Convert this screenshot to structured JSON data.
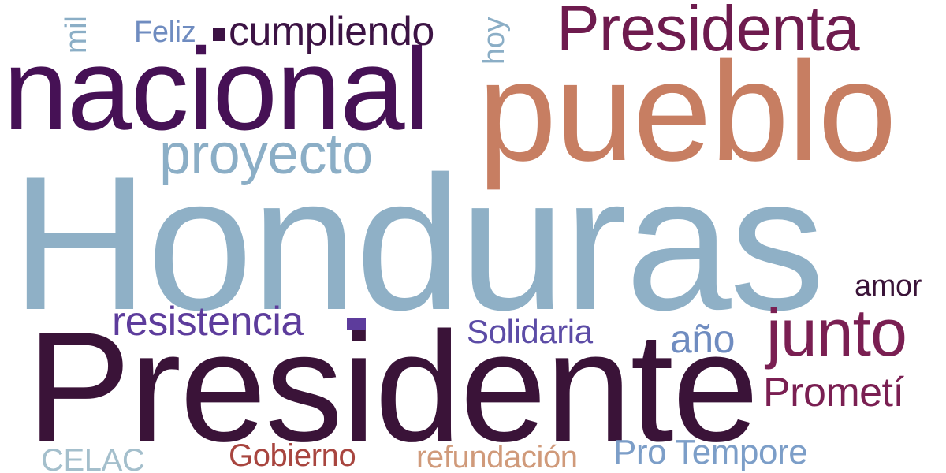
{
  "words": {
    "honduras": {
      "text": "Honduras",
      "color": "#8FB0C6"
    },
    "presidente": {
      "text": "Presidente",
      "color": "#3A1338"
    },
    "pueblo": {
      "text": "pueblo",
      "color": "#C77E62"
    },
    "nacional": {
      "text": "nacional",
      "color": "#461155"
    },
    "presidenta": {
      "text": "Presidenta",
      "color": "#6E1B4E"
    },
    "proyecto": {
      "text": "proyecto",
      "color": "#8BAEC6"
    },
    "junto": {
      "text": "junto",
      "color": "#7A1F52"
    },
    "resistencia": {
      "text": "resistencia",
      "color": "#5D3C9C"
    },
    "cumpliendo": {
      "text": "cumpliendo",
      "color": "#3C1344"
    },
    "prometi": {
      "text": "Prometí",
      "color": "#7A1F52"
    },
    "pro_tempore": {
      "text": "Pro Tempore",
      "color": "#7C9EC8"
    },
    "solidaria": {
      "text": "Solidaria",
      "color": "#5C4CA6"
    },
    "ano": {
      "text": "año",
      "color": "#6F8CC0"
    },
    "refundacion": {
      "text": "refundación",
      "color": "#D09A7A"
    },
    "gobierno": {
      "text": "Gobierno",
      "color": "#A8453F"
    },
    "celac": {
      "text": "CELAC",
      "color": "#A4BFCC"
    },
    "amor": {
      "text": "amor",
      "color": "#3A1338"
    },
    "feliz": {
      "text": "Feliz",
      "color": "#6F8CC0"
    },
    "hoy": {
      "text": "hoy",
      "color": "#8BAEC6"
    },
    "mil": {
      "text": "mil",
      "color": "#8BAEC6"
    }
  },
  "marks": {
    "square_color": "#3C1344",
    "bar_color": "#5D3C9C"
  }
}
